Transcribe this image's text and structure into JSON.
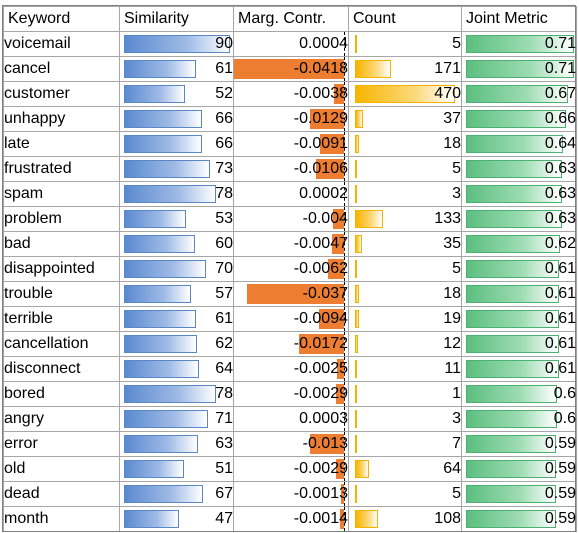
{
  "headers": [
    "Keyword",
    "Similarity",
    "Marg. Contr.",
    "Count",
    "Joint Metric"
  ],
  "colors": {
    "similarity_bar": "#5b8ad0",
    "marg_contr_bar": "#ed7d31",
    "count_bar": "#f7b500",
    "joint_metric_bar": "#5cbf7f",
    "grid": "#a6a6a6"
  },
  "scales": {
    "similarity_max": 90,
    "count_max": 470,
    "joint_metric_max": 0.71,
    "marg_contr_min": -0.0418
  },
  "rows": [
    {
      "keyword": "voicemail",
      "similarity": "90",
      "marg": "0.0004",
      "count": "5",
      "joint": "0.71"
    },
    {
      "keyword": "cancel",
      "similarity": "61",
      "marg": "-0.0418",
      "count": "171",
      "joint": "0.71"
    },
    {
      "keyword": "customer",
      "similarity": "52",
      "marg": "-0.0038",
      "count": "470",
      "joint": "0.67"
    },
    {
      "keyword": "unhappy",
      "similarity": "66",
      "marg": "-0.0129",
      "count": "37",
      "joint": "0.66"
    },
    {
      "keyword": "late",
      "similarity": "66",
      "marg": "-0.0091",
      "count": "18",
      "joint": "0.64"
    },
    {
      "keyword": "frustrated",
      "similarity": "73",
      "marg": "-0.0106",
      "count": "5",
      "joint": "0.63"
    },
    {
      "keyword": "spam",
      "similarity": "78",
      "marg": "0.0002",
      "count": "3",
      "joint": "0.63"
    },
    {
      "keyword": "problem",
      "similarity": "53",
      "marg": "-0.004",
      "count": "133",
      "joint": "0.63"
    },
    {
      "keyword": "bad",
      "similarity": "60",
      "marg": "-0.0047",
      "count": "35",
      "joint": "0.62"
    },
    {
      "keyword": "disappointed",
      "similarity": "70",
      "marg": "-0.0062",
      "count": "5",
      "joint": "0.61"
    },
    {
      "keyword": "trouble",
      "similarity": "57",
      "marg": "-0.037",
      "count": "18",
      "joint": "0.61"
    },
    {
      "keyword": "terrible",
      "similarity": "61",
      "marg": "-0.0094",
      "count": "19",
      "joint": "0.61"
    },
    {
      "keyword": "cancellation",
      "similarity": "62",
      "marg": "-0.0172",
      "count": "12",
      "joint": "0.61"
    },
    {
      "keyword": "disconnect",
      "similarity": "64",
      "marg": "-0.0025",
      "count": "11",
      "joint": "0.61"
    },
    {
      "keyword": "bored",
      "similarity": "78",
      "marg": "-0.0029",
      "count": "1",
      "joint": "0.6"
    },
    {
      "keyword": "angry",
      "similarity": "71",
      "marg": "0.0003",
      "count": "3",
      "joint": "0.6"
    },
    {
      "keyword": "error",
      "similarity": "63",
      "marg": "-0.013",
      "count": "7",
      "joint": "0.59"
    },
    {
      "keyword": "old",
      "similarity": "51",
      "marg": "-0.0029",
      "count": "64",
      "joint": "0.59"
    },
    {
      "keyword": "dead",
      "similarity": "67",
      "marg": "-0.0013",
      "count": "5",
      "joint": "0.59"
    },
    {
      "keyword": "month",
      "similarity": "47",
      "marg": "-0.0014",
      "count": "108",
      "joint": "0.59"
    }
  ]
}
